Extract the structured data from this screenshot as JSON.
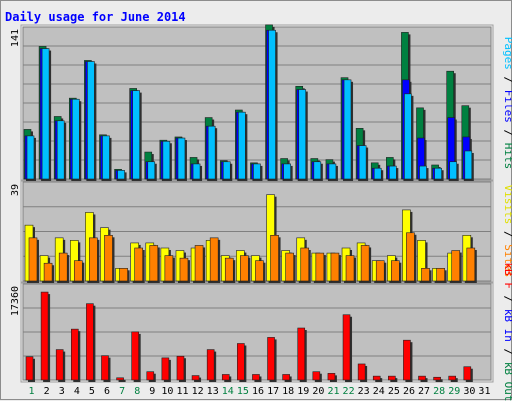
{
  "chart_data": {
    "type": "bar",
    "title": "Daily usage for June 2014",
    "days": [
      "1",
      "2",
      "3",
      "4",
      "5",
      "6",
      "7",
      "8",
      "9",
      "10",
      "11",
      "12",
      "13",
      "14",
      "15",
      "16",
      "17",
      "18",
      "19",
      "20",
      "21",
      "22",
      "23",
      "24",
      "25",
      "26",
      "27",
      "28",
      "29",
      "30",
      "31"
    ],
    "weekend_days": [
      "1",
      "7",
      "8",
      "14",
      "15",
      "21",
      "22",
      "28",
      "29"
    ],
    "panels": [
      {
        "id": "top",
        "ymax_label": "141",
        "ymax": 141,
        "series": [
          {
            "name": "Pages",
            "color": "#00c0ff",
            "values": [
              40,
              121,
              54,
              74,
              109,
              40,
              8,
              82,
              16,
              35,
              38,
              14,
              49,
              16,
              62,
              14,
              138,
              14,
              83,
              16,
              14,
              92,
              31,
              10,
              12,
              79,
              12,
              10,
              16,
              26,
              0
            ]
          },
          {
            "name": "Files",
            "color": "#0000ff",
            "values": [
              40,
              121,
              54,
              74,
              109,
              40,
              8,
              82,
              16,
              35,
              38,
              14,
              49,
              16,
              62,
              14,
              138,
              14,
              83,
              16,
              14,
              92,
              31,
              10,
              12,
              92,
              38,
              10,
              57,
              39,
              0
            ]
          },
          {
            "name": "Hits",
            "color": "#008040",
            "values": [
              46,
              123,
              58,
              75,
              110,
              41,
              9,
              84,
              25,
              36,
              39,
              20,
              57,
              17,
              64,
              15,
              143,
              19,
              86,
              19,
              18,
              94,
              47,
              15,
              20,
              136,
              66,
              13,
              100,
              68,
              0
            ]
          }
        ]
      },
      {
        "id": "middle",
        "ymax_label": "39",
        "ymax": 39,
        "series": [
          {
            "name": "Visits",
            "color": "#ffff00",
            "values": [
              22,
              10,
              17,
              16,
              27,
              21,
              5,
              15,
              15,
              13,
              12,
              13,
              16,
              10,
              12,
              10,
              34,
              12,
              17,
              11,
              11,
              13,
              15,
              8,
              10,
              28,
              16,
              5,
              11,
              18,
              0
            ]
          },
          {
            "name": "Sites",
            "color": "#ff8000",
            "values": [
              17,
              7,
              11,
              8,
              17,
              18,
              5,
              13,
              14,
              10,
              9,
              14,
              17,
              9,
              10,
              8,
              18,
              11,
              13,
              11,
              11,
              10,
              14,
              8,
              8,
              19,
              5,
              5,
              12,
              13,
              0
            ]
          }
        ]
      },
      {
        "id": "bottom",
        "ymax_label": "17360",
        "ymax": 17360,
        "series": [
          {
            "name": "kB F",
            "color": "#ff0000",
            "values": [
              4200,
              15900,
              5500,
              9200,
              13800,
              4400,
              400,
              8700,
              1500,
              4000,
              4300,
              800,
              5500,
              1000,
              6600,
              1000,
              7700,
              1000,
              9400,
              1500,
              1200,
              11800,
              2900,
              700,
              700,
              7200,
              700,
              500,
              700,
              2400,
              0
            ]
          },
          {
            "name": "kB In",
            "color": "#0000ff",
            "values": []
          },
          {
            "name": "kB Out",
            "color": "#008040",
            "values": []
          }
        ]
      }
    ],
    "legend_right": {
      "top": [
        {
          "text": "Pages",
          "color": "#00c0ff"
        },
        {
          "text": " / ",
          "color": "#000000"
        },
        {
          "text": "Files",
          "color": "#0000ff"
        },
        {
          "text": " / ",
          "color": "#000000"
        },
        {
          "text": "Hits",
          "color": "#008040"
        }
      ],
      "middle": [
        {
          "text": "Visits",
          "color": "#e0e000"
        },
        {
          "text": " / ",
          "color": "#000000"
        },
        {
          "text": "Sites",
          "color": "#ff8000"
        }
      ],
      "bottom": [
        {
          "text": "kB F",
          "color": "#ff0000"
        },
        {
          "text": " / ",
          "color": "#000000"
        },
        {
          "text": "kB In",
          "color": "#0000ff"
        },
        {
          "text": " / ",
          "color": "#000000"
        },
        {
          "text": "kB Out",
          "color": "#008040"
        }
      ]
    },
    "colors": {
      "background": "#ececec",
      "plot_background": "#c0c0c0",
      "title": "#0000ff",
      "weekday_label": "#000000",
      "weekend_label": "#008040"
    },
    "grid": true
  }
}
